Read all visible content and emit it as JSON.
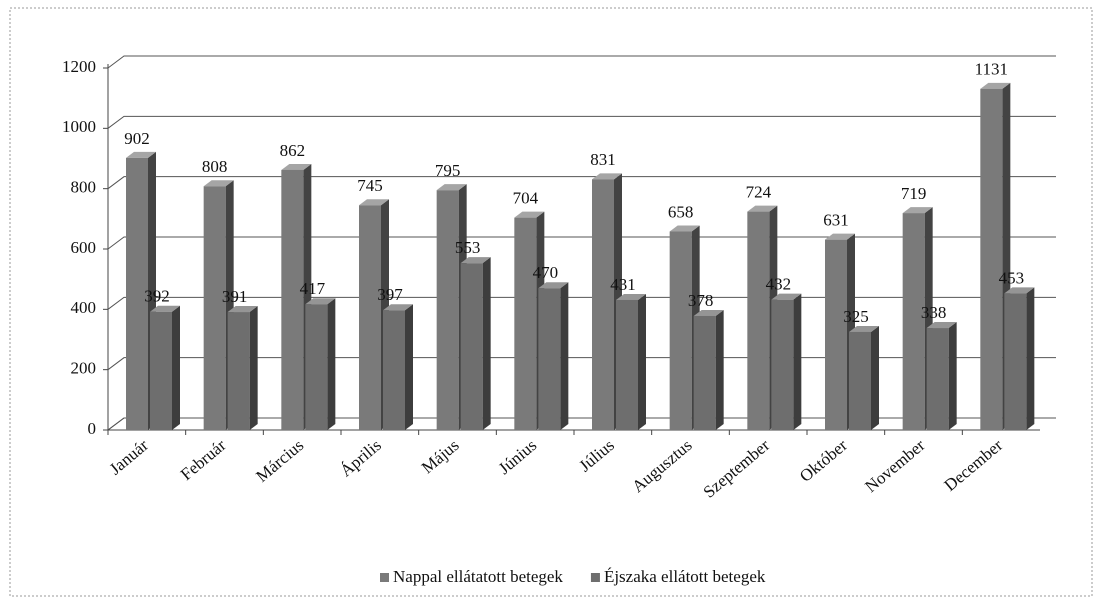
{
  "chart_data": {
    "type": "bar3d",
    "categories": [
      "Január",
      "Február",
      "Március",
      "Április",
      "Május",
      "Június",
      "Július",
      "Augusztus",
      "Szeptember",
      "Október",
      "November",
      "December"
    ],
    "series": [
      {
        "name": "Nappal ellátatott betegek",
        "color": "#7a7a7a",
        "values": [
          902,
          808,
          862,
          745,
          795,
          704,
          831,
          658,
          724,
          631,
          719,
          1131
        ]
      },
      {
        "name": "Éjszaka ellátott betegek",
        "color": "#6e6e6e",
        "values": [
          392,
          391,
          417,
          397,
          553,
          470,
          431,
          378,
          432,
          325,
          338,
          453
        ]
      }
    ],
    "ylim": [
      0,
      1200
    ],
    "yticks": [
      0,
      200,
      400,
      600,
      800,
      1000,
      1200
    ],
    "grid": true,
    "legend": "bottom"
  }
}
